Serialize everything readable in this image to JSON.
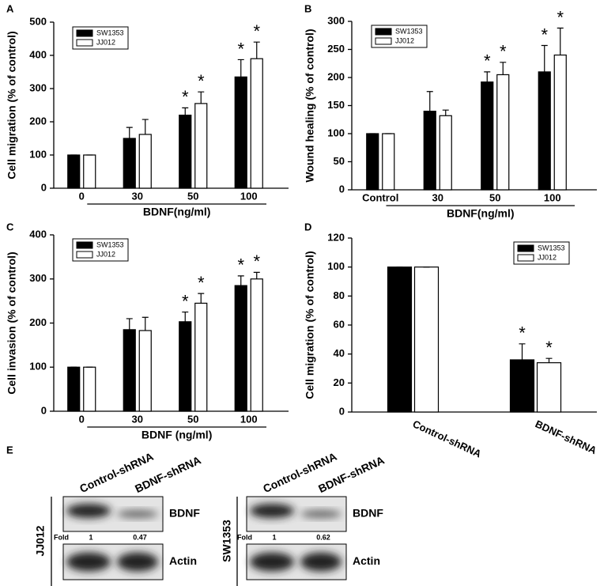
{
  "chart_data": [
    {
      "type": "bar",
      "panel_label": "A",
      "y_label": "Cell migration (% of control)",
      "group_label": "BDNF(ng/ml)",
      "categories": [
        "0",
        "30",
        "50",
        "100"
      ],
      "ylim": [
        0,
        500
      ],
      "yticks": [
        0,
        100,
        200,
        300,
        400,
        500
      ],
      "legend": "upper left",
      "series": [
        {
          "name": "SW1353",
          "color": "#000000",
          "values": [
            100,
            150,
            220,
            335
          ],
          "errors": [
            0,
            33,
            22,
            52
          ],
          "significance": [
            null,
            null,
            "*",
            "*"
          ]
        },
        {
          "name": "JJ012",
          "color": "#ffffff",
          "values": [
            100,
            162,
            255,
            390
          ],
          "errors": [
            0,
            45,
            35,
            50
          ],
          "significance": [
            null,
            null,
            "*",
            "*"
          ]
        }
      ]
    },
    {
      "type": "bar",
      "panel_label": "B",
      "y_label": "Wound healing (% of control)",
      "group_label": "BDNF(ng/ml)",
      "categories": [
        "Control",
        "30",
        "50",
        "100"
      ],
      "ylim": [
        0,
        300
      ],
      "yticks": [
        0,
        50,
        100,
        150,
        200,
        250,
        300
      ],
      "legend": "upper left",
      "series": [
        {
          "name": "SW1353",
          "color": "#000000",
          "values": [
            100,
            140,
            192,
            210
          ],
          "errors": [
            0,
            35,
            18,
            47
          ],
          "significance": [
            null,
            null,
            "*",
            "*"
          ]
        },
        {
          "name": "JJ012",
          "color": "#ffffff",
          "values": [
            100,
            132,
            205,
            240
          ],
          "errors": [
            0,
            10,
            22,
            48
          ],
          "significance": [
            null,
            null,
            "*",
            "*"
          ]
        }
      ]
    },
    {
      "type": "bar",
      "panel_label": "C",
      "y_label": "Cell invasion (% of control)",
      "group_label": "BDNF (ng/ml)",
      "categories": [
        "0",
        "30",
        "50",
        "100"
      ],
      "ylim": [
        0,
        400
      ],
      "yticks": [
        0,
        100,
        200,
        300,
        400
      ],
      "legend": "upper left",
      "series": [
        {
          "name": "SW1353",
          "color": "#000000",
          "values": [
            100,
            185,
            203,
            285
          ],
          "errors": [
            0,
            25,
            22,
            22
          ],
          "significance": [
            null,
            null,
            "*",
            "*"
          ]
        },
        {
          "name": "JJ012",
          "color": "#ffffff",
          "values": [
            100,
            183,
            245,
            300
          ],
          "errors": [
            0,
            30,
            22,
            15
          ],
          "significance": [
            null,
            null,
            "*",
            "*"
          ]
        }
      ]
    },
    {
      "type": "bar",
      "panel_label": "D",
      "y_label": "Cell migration (% of control)",
      "categories": [
        "Control-shRNA",
        "BDNF-shRNA"
      ],
      "ylim": [
        0,
        120
      ],
      "yticks": [
        0,
        20,
        40,
        60,
        80,
        100,
        120
      ],
      "legend": "upper right",
      "series": [
        {
          "name": "SW1353",
          "color": "#000000",
          "values": [
            100,
            36
          ],
          "errors": [
            0,
            11
          ],
          "significance": [
            null,
            "*"
          ]
        },
        {
          "name": "JJ012",
          "color": "#ffffff",
          "values": [
            100,
            34
          ],
          "errors": [
            0,
            3
          ],
          "significance": [
            null,
            "*"
          ]
        }
      ]
    }
  ],
  "blot": {
    "panel_label": "E",
    "panels": [
      {
        "cell_line": "JJ012",
        "lanes": [
          "Control-shRNA",
          "BDNF-shRNA"
        ],
        "proteins": [
          "BDNF",
          "Actin"
        ],
        "fold_label": "Fold",
        "fold": [
          1,
          0.47
        ]
      },
      {
        "cell_line": "SW1353",
        "lanes": [
          "Control-shRNA",
          "BDNF-shRNA"
        ],
        "proteins": [
          "BDNF",
          "Actin"
        ],
        "fold_label": "Fold",
        "fold": [
          1,
          0.62
        ]
      }
    ]
  }
}
